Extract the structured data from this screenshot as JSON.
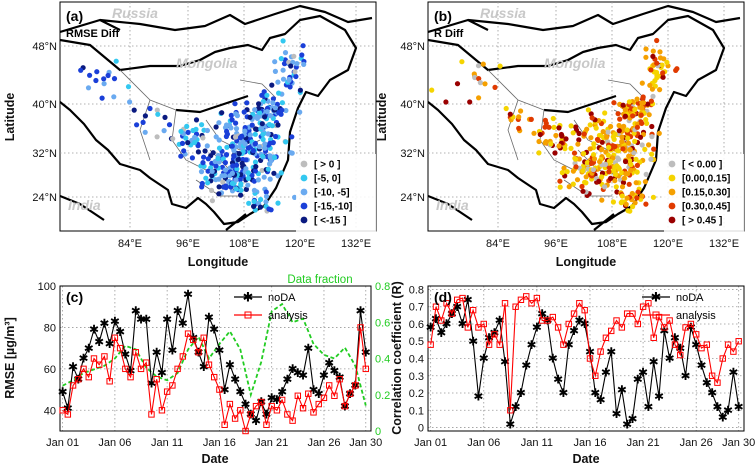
{
  "chart_data": [
    {
      "type": "map",
      "panel_label": "(a)",
      "title": "RMSE Diff",
      "xlabel": "Longitude",
      "ylabel": "Latitude",
      "x_ticks": [
        "84°E",
        "96°E",
        "108°E",
        "120°E",
        "132°E"
      ],
      "y_ticks": [
        "48°N",
        "40°N",
        "32°N",
        "24°N"
      ],
      "country_labels": [
        "Russia",
        "Mongolia",
        "India"
      ],
      "legend_position": "bottom-right",
      "legend": [
        {
          "label": "[   > 0   ]",
          "color": "#bdbdbd"
        },
        {
          "label": "[-5,     0]",
          "color": "#33c8f0"
        },
        {
          "label": "[-10,  -5]",
          "color": "#6aaaf0"
        },
        {
          "label": "[-15,-10]",
          "color": "#1a3fd8"
        },
        {
          "label": "[  <-15  ]",
          "color": "#0a1a80"
        }
      ]
    },
    {
      "type": "map",
      "panel_label": "(b)",
      "title": "R Diff",
      "xlabel": "Longitude",
      "ylabel": "Latitude",
      "x_ticks": [
        "84°E",
        "96°E",
        "108°E",
        "120°E",
        "132°E"
      ],
      "y_ticks": [
        "48°N",
        "40°N",
        "32°N",
        "24°N"
      ],
      "country_labels": [
        "Russia",
        "Mongolia",
        "India"
      ],
      "legend_position": "bottom-right",
      "legend": [
        {
          "label": "[ < 0.00   ]",
          "color": "#bdbdbd"
        },
        {
          "label": "[0.00,0.15]",
          "color": "#f5d400"
        },
        {
          "label": "[0.15,0.30]",
          "color": "#f5a000"
        },
        {
          "label": "[0.30,0.45]",
          "color": "#e03a00"
        },
        {
          "label": "[   > 0.45  ]",
          "color": "#9a0000"
        }
      ]
    },
    {
      "type": "line",
      "panel_label": "(c)",
      "xlabel": "Date",
      "ylabel": "RMSE [µg/m³]",
      "y2label": "Data fraction",
      "x_ticks": [
        "Jan 01",
        "Jan 06",
        "Jan 11",
        "Jan 16",
        "Jan 21",
        "Jan 26",
        "Jan 30"
      ],
      "x_tick_days": [
        1,
        6,
        11,
        16,
        21,
        26,
        30
      ],
      "xlim": [
        0.75,
        30.5
      ],
      "ylim": [
        30,
        100
      ],
      "y_ticks": [
        40,
        60,
        80,
        100
      ],
      "y2lim": [
        0,
        0.8
      ],
      "y2_ticks": [
        0,
        0.2,
        0.4,
        0.6,
        0.8
      ],
      "grid": true,
      "legend_position": "top-center",
      "series": [
        {
          "name": "noDA",
          "color": "#000000",
          "marker": "asterisk",
          "axis": "left",
          "x": [
            1,
            1.5,
            2,
            2.5,
            3,
            3.5,
            4,
            4.5,
            5,
            5.5,
            6,
            6.5,
            7,
            7.5,
            8,
            8.5,
            9,
            9.5,
            10,
            10.5,
            11,
            11.5,
            12,
            12.5,
            13,
            13.5,
            14,
            14.5,
            15,
            15.5,
            16,
            16.5,
            17,
            17.5,
            18,
            18.5,
            19,
            19.5,
            20,
            20.5,
            21,
            21.5,
            22,
            22.5,
            23,
            23.5,
            24,
            24.5,
            25,
            25.5,
            26,
            26.5,
            27,
            27.5,
            28,
            28.5,
            29,
            29.5,
            30
          ],
          "y": [
            49,
            41,
            61,
            55,
            65,
            70,
            79,
            73,
            82,
            72,
            83,
            78,
            67,
            59,
            88,
            84,
            84,
            53,
            68,
            58,
            84,
            69,
            88,
            82,
            96,
            75,
            68,
            61,
            85,
            79,
            69,
            50,
            62,
            55,
            49,
            43,
            38,
            35,
            44,
            38,
            46,
            45,
            49,
            55,
            60,
            58,
            57,
            70,
            50,
            48,
            57,
            63,
            59,
            56,
            42,
            48,
            52,
            88,
            68
          ]
        },
        {
          "name": "analysis",
          "color": "#ff0000",
          "marker": "square",
          "axis": "left",
          "x": [
            1,
            1.5,
            2,
            2.5,
            3,
            3.5,
            4,
            4.5,
            5,
            5.5,
            6,
            6.5,
            7,
            7.5,
            8,
            8.5,
            9,
            9.5,
            10,
            10.5,
            11,
            11.5,
            12,
            12.5,
            13,
            13.5,
            14,
            14.5,
            15,
            15.5,
            16,
            16.5,
            17,
            17.5,
            18,
            18.5,
            19,
            19.5,
            20,
            20.5,
            21,
            21.5,
            22,
            22.5,
            23,
            23.5,
            24,
            24.5,
            25,
            25.5,
            26,
            26.5,
            27,
            27.5,
            28,
            28.5,
            29,
            29.5,
            30
          ],
          "y": [
            40,
            38,
            52,
            55,
            60,
            56,
            65,
            62,
            66,
            54,
            75,
            70,
            60,
            56,
            68,
            60,
            63,
            38,
            55,
            40,
            49,
            52,
            60,
            66,
            77,
            74,
            68,
            75,
            62,
            56,
            50,
            33,
            43,
            36,
            40,
            30,
            38,
            42,
            44,
            33,
            42,
            40,
            45,
            38,
            35,
            47,
            41,
            48,
            39,
            43,
            46,
            52,
            47,
            55,
            42,
            48,
            52,
            80,
            60
          ]
        },
        {
          "name": "Data fraction",
          "color": "#22cc22",
          "dashed": true,
          "axis": "right",
          "x": [
            1,
            2,
            3,
            4,
            5,
            6,
            7,
            8,
            9,
            10,
            11,
            12,
            13,
            14,
            15,
            16,
            17,
            18,
            19,
            20,
            21,
            22,
            23,
            24,
            25,
            26,
            27,
            28,
            29,
            30
          ],
          "y": [
            0.25,
            0.28,
            0.32,
            0.34,
            0.36,
            0.4,
            0.47,
            0.45,
            0.35,
            0.3,
            0.28,
            0.32,
            0.45,
            0.52,
            0.4,
            0.48,
            0.55,
            0.45,
            0.2,
            0.38,
            0.66,
            0.7,
            0.6,
            0.62,
            0.48,
            0.42,
            0.4,
            0.46,
            0.36,
            0.14
          ]
        }
      ]
    },
    {
      "type": "line",
      "panel_label": "(d)",
      "xlabel": "Date",
      "ylabel": "Correlation coefficient (R)",
      "x_ticks": [
        "Jan 01",
        "Jan 06",
        "Jan 11",
        "Jan 16",
        "Jan 21",
        "Jan 26",
        "Jan 30"
      ],
      "x_tick_days": [
        1,
        6,
        11,
        16,
        21,
        26,
        30
      ],
      "xlim": [
        0.75,
        30.5
      ],
      "ylim": [
        -0.02,
        0.82
      ],
      "y_ticks": [
        0,
        0.1,
        0.2,
        0.3,
        0.4,
        0.5,
        0.6,
        0.7,
        0.8
      ],
      "grid": true,
      "legend_position": "top-right",
      "series": [
        {
          "name": "noDA",
          "color": "#000000",
          "marker": "asterisk",
          "x": [
            1,
            1.5,
            2,
            2.5,
            3,
            3.5,
            4,
            4.5,
            5,
            5.5,
            6,
            6.5,
            7,
            7.5,
            8,
            8.5,
            9,
            9.5,
            10,
            10.5,
            11,
            11.5,
            12,
            12.5,
            13,
            13.5,
            14,
            14.5,
            15,
            15.5,
            16,
            16.5,
            17,
            17.5,
            18,
            18.5,
            19,
            19.5,
            20,
            20.5,
            21,
            21.5,
            22,
            22.5,
            23,
            23.5,
            24,
            24.5,
            25,
            25.5,
            26,
            26.5,
            27,
            27.5,
            28,
            28.5,
            29,
            29.5,
            30
          ],
          "y": [
            0.58,
            0.63,
            0.55,
            0.6,
            0.66,
            0.7,
            0.6,
            0.74,
            0.5,
            0.18,
            0.4,
            0.52,
            0.55,
            0.62,
            0.38,
            0.02,
            0.12,
            0.2,
            0.36,
            0.48,
            0.58,
            0.66,
            0.62,
            0.4,
            0.28,
            0.2,
            0.48,
            0.56,
            0.62,
            0.6,
            0.44,
            0.2,
            0.16,
            0.32,
            0.44,
            0.08,
            0.22,
            0.02,
            0.05,
            0.28,
            0.32,
            0.12,
            0.38,
            0.18,
            0.56,
            0.4,
            0.52,
            0.46,
            0.3,
            0.58,
            0.48,
            0.36,
            0.26,
            0.2,
            0.12,
            0.06,
            0.1,
            0.32,
            0.12
          ]
        },
        {
          "name": "analysis",
          "color": "#ff0000",
          "marker": "square",
          "x": [
            1,
            1.5,
            2,
            2.5,
            3,
            3.5,
            4,
            4.5,
            5,
            5.5,
            6,
            6.5,
            7,
            7.5,
            8,
            8.5,
            9,
            9.5,
            10,
            10.5,
            11,
            11.5,
            12,
            12.5,
            13,
            13.5,
            14,
            14.5,
            15,
            15.5,
            16,
            16.5,
            17,
            17.5,
            18,
            18.5,
            19,
            19.5,
            20,
            20.5,
            21,
            21.5,
            22,
            22.5,
            23,
            23.5,
            24,
            24.5,
            25,
            25.5,
            26,
            26.5,
            27,
            27.5,
            28,
            28.5,
            29,
            29.5,
            30
          ],
          "y": [
            0.48,
            0.7,
            0.62,
            0.72,
            0.66,
            0.74,
            0.75,
            0.58,
            0.68,
            0.58,
            0.6,
            0.48,
            0.54,
            0.48,
            0.72,
            0.1,
            0.7,
            0.74,
            0.76,
            0.72,
            0.75,
            0.62,
            0.62,
            0.64,
            0.58,
            0.48,
            0.6,
            0.66,
            0.72,
            0.68,
            0.4,
            0.3,
            0.44,
            0.52,
            0.56,
            0.62,
            0.58,
            0.66,
            0.66,
            0.6,
            0.7,
            0.72,
            0.52,
            0.64,
            0.58,
            0.62,
            0.48,
            0.42,
            0.58,
            0.6,
            0.54,
            0.46,
            0.48,
            0.3,
            0.26,
            0.4,
            0.48,
            0.44,
            0.5
          ]
        }
      ]
    }
  ]
}
